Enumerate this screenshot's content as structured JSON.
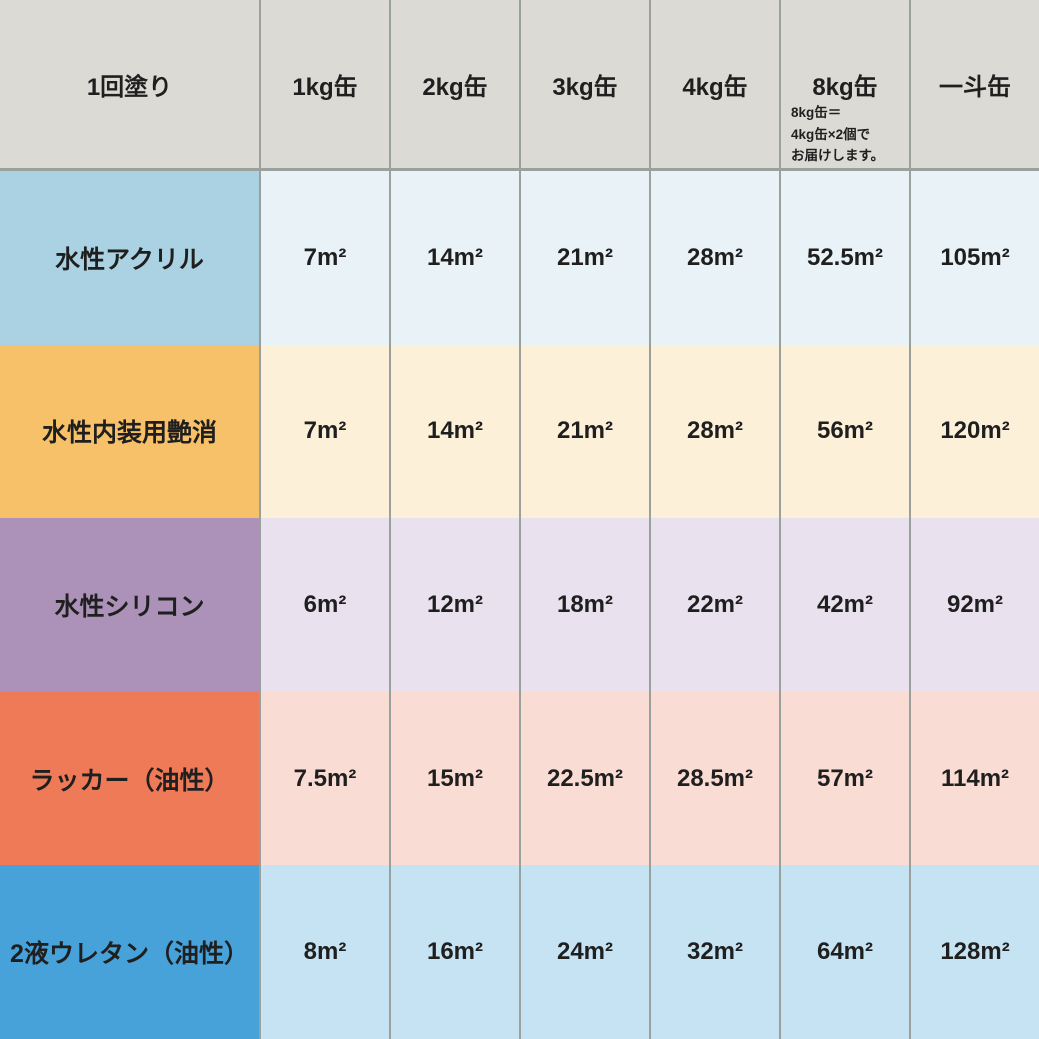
{
  "chart_data": {
    "type": "table",
    "title": "1回塗り",
    "categories": [
      "1kg缶",
      "2kg缶",
      "3kg缶",
      "4kg缶",
      "8kg缶",
      "一斗缶"
    ],
    "series": [
      {
        "name": "水性アクリル",
        "values": [
          7,
          14,
          21,
          28,
          52.5,
          105
        ]
      },
      {
        "name": "水性内装用艶消",
        "values": [
          7,
          14,
          21,
          28,
          56,
          120
        ]
      },
      {
        "name": "水性シリコン",
        "values": [
          6,
          12,
          18,
          22,
          42,
          92
        ]
      },
      {
        "name": "ラッカー（油性）",
        "values": [
          7.5,
          15,
          22.5,
          28.5,
          57,
          114
        ]
      },
      {
        "name": "2液ウレタン（油性）",
        "values": [
          8,
          16,
          24,
          32,
          64,
          128
        ]
      }
    ],
    "unit": "m²",
    "annotation": "8kg缶＝4kg缶×2個でお届けします。"
  },
  "table": {
    "colors": {
      "header_bg": "#dcdad4",
      "divider": "#9aa09c",
      "text": "#1f1f1f"
    },
    "header": {
      "row_label": "1回塗り",
      "columns": [
        "1kg缶",
        "2kg缶",
        "3kg缶",
        "4kg缶",
        "8kg缶",
        "一斗缶"
      ],
      "note": "8kg缶＝\n4kg缶×2個で\nお届けします。"
    },
    "rows": [
      {
        "label": "水性アクリル",
        "label_color": "#abd2e2",
        "cell_color": "#e9f2f6",
        "values": [
          "7m²",
          "14m²",
          "21m²",
          "28m²",
          "52.5m²",
          "105m²"
        ]
      },
      {
        "label": "水性内装用艶消",
        "label_color": "#f7c169",
        "cell_color": "#fdf0d9",
        "values": [
          "7m²",
          "14m²",
          "21m²",
          "28m²",
          "56m²",
          "120m²"
        ]
      },
      {
        "label": "水性シリコン",
        "label_color": "#ac92b8",
        "cell_color": "#e9e2ee",
        "values": [
          "6m²",
          "12m²",
          "18m²",
          "22m²",
          "42m²",
          "92m²"
        ]
      },
      {
        "label": "ラッカー（油性）",
        "label_color": "#ee7a58",
        "cell_color": "#f9dcd3",
        "values": [
          "7.5m²",
          "15m²",
          "22.5m²",
          "28.5m²",
          "57m²",
          "114m²"
        ]
      },
      {
        "label": "2液ウレタン（油性）",
        "label_color": "#47a2d9",
        "cell_color": "#c5e3f2",
        "values": [
          "8m²",
          "16m²",
          "24m²",
          "32m²",
          "64m²",
          "128m²"
        ]
      }
    ]
  }
}
